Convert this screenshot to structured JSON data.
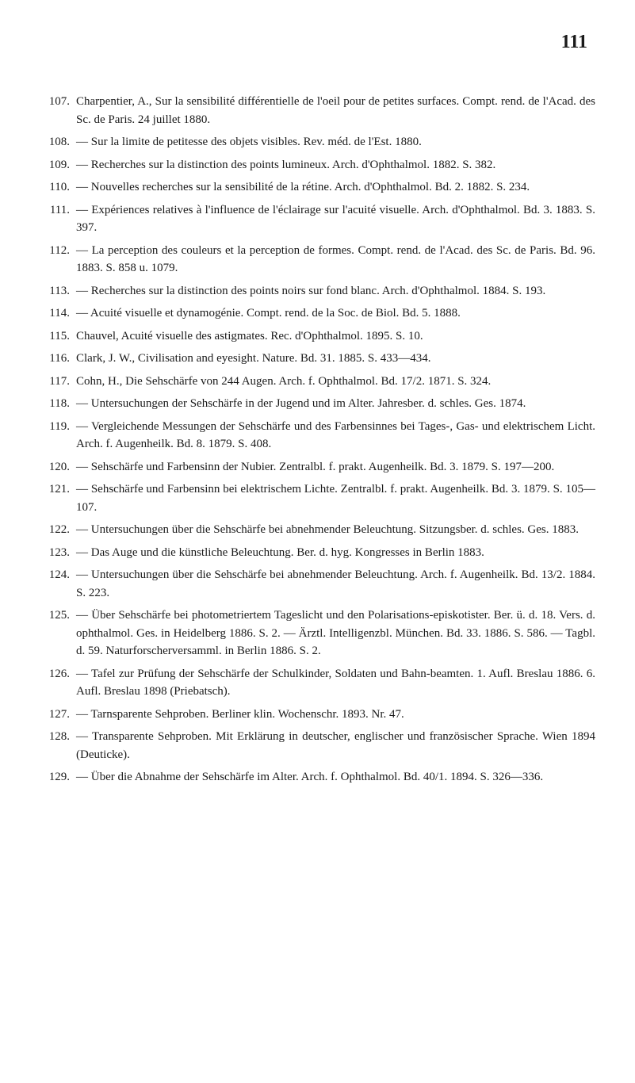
{
  "pageNumber": "111",
  "entries": [
    {
      "num": "107.",
      "text": "Charpentier, A., Sur la sensibilité différentielle de l'oeil pour de petites surfaces. Compt. rend. de l'Acad. des Sc. de Paris. 24 juillet 1880."
    },
    {
      "num": "108.",
      "text": "— Sur la limite de petitesse des objets visibles. Rev. méd. de l'Est. 1880."
    },
    {
      "num": "109.",
      "text": "— Recherches sur la distinction des points lumineux. Arch. d'Ophthalmol. 1882. S. 382."
    },
    {
      "num": "110.",
      "text": "— Nouvelles recherches sur la sensibilité de la rétine. Arch. d'Ophthalmol. Bd. 2. 1882. S. 234."
    },
    {
      "num": "111.",
      "text": "— Expériences relatives à l'influence de l'éclairage sur l'acuité visuelle. Arch. d'Ophthalmol. Bd. 3. 1883. S. 397."
    },
    {
      "num": "112.",
      "text": "— La perception des couleurs et la perception de formes. Compt. rend. de l'Acad. des Sc. de Paris. Bd. 96. 1883. S. 858 u. 1079."
    },
    {
      "num": "113.",
      "text": "— Recherches sur la distinction des points noirs sur fond blanc. Arch. d'Ophthalmol. 1884. S. 193."
    },
    {
      "num": "114.",
      "text": "— Acuité visuelle et dynamogénie. Compt. rend. de la Soc. de Biol. Bd. 5. 1888."
    },
    {
      "num": "115.",
      "text": "Chauvel, Acuité visuelle des astigmates. Rec. d'Ophthalmol. 1895. S. 10."
    },
    {
      "num": "116.",
      "text": "Clark, J. W., Civilisation and eyesight. Nature. Bd. 31. 1885. S. 433—434."
    },
    {
      "num": "117.",
      "text": "Cohn, H., Die Sehschärfe von 244 Augen. Arch. f. Ophthalmol. Bd. 17/2. 1871. S. 324."
    },
    {
      "num": "118.",
      "text": "— Untersuchungen der Sehschärfe in der Jugend und im Alter. Jahresber. d. schles. Ges. 1874."
    },
    {
      "num": "119.",
      "text": "— Vergleichende Messungen der Sehschärfe und des Farbensinnes bei Tages-, Gas- und elektrischem Licht. Arch. f. Augenheilk. Bd. 8. 1879. S. 408."
    },
    {
      "num": "120.",
      "text": "— Sehschärfe und Farbensinn der Nubier. Zentralbl. f. prakt. Augenheilk. Bd. 3. 1879. S. 197—200."
    },
    {
      "num": "121.",
      "text": "— Sehschärfe und Farbensinn bei elektrischem Lichte. Zentralbl. f. prakt. Augenheilk. Bd. 3. 1879. S. 105—107."
    },
    {
      "num": "122.",
      "text": "— Untersuchungen über die Sehschärfe bei abnehmender Beleuchtung. Sitzungsber. d. schles. Ges. 1883."
    },
    {
      "num": "123.",
      "text": "— Das Auge und die künstliche Beleuchtung. Ber. d. hyg. Kongresses in Berlin 1883."
    },
    {
      "num": "124.",
      "text": "— Untersuchungen über die Sehschärfe bei abnehmender Beleuchtung. Arch. f. Augenheilk. Bd. 13/2. 1884. S. 223."
    },
    {
      "num": "125.",
      "text": "— Über Sehschärfe bei photometriertem Tageslicht und den Polarisations-episkotister. Ber. ü. d. 18. Vers. d. ophthalmol. Ges. in Heidelberg 1886. S. 2. — Ärztl. Intelligenzbl. München. Bd. 33. 1886. S. 586. — Tagbl. d. 59. Naturforscherversamml. in Berlin 1886. S. 2."
    },
    {
      "num": "126.",
      "text": "— Tafel zur Prüfung der Sehschärfe der Schulkinder, Soldaten und Bahn-beamten. 1. Aufl. Breslau 1886. 6. Aufl. Breslau 1898 (Priebatsch)."
    },
    {
      "num": "127.",
      "text": "— Tarnsparente Sehproben. Berliner klin. Wochenschr. 1893. Nr. 47."
    },
    {
      "num": "128.",
      "text": "— Transparente Sehproben. Mit Erklärung in deutscher, englischer und französischer Sprache. Wien 1894 (Deuticke)."
    },
    {
      "num": "129.",
      "text": "— Über die Abnahme der Sehschärfe im Alter. Arch. f. Ophthalmol. Bd. 40/1. 1894. S. 326—336."
    }
  ]
}
